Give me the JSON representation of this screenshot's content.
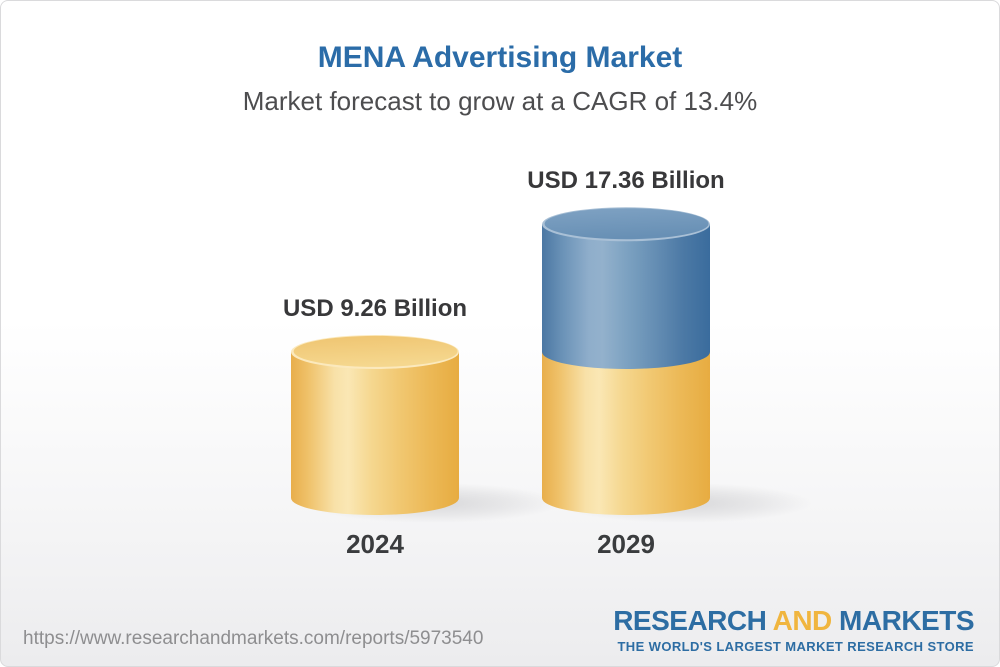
{
  "chart_data": {
    "type": "bar",
    "variant": "3d-cylinder-infographic",
    "title": "MENA Advertising Market",
    "subtitle": "Market forecast to grow at a CAGR of 13.4%",
    "cagr_percent": 13.4,
    "unit": "USD Billion",
    "categories": [
      "2024",
      "2029"
    ],
    "values": [
      9.26,
      17.36
    ],
    "legend_position": "none",
    "grid": false,
    "bars": [
      {
        "category": "2024",
        "value": 9.26,
        "value_label": "USD 9.26 Billion",
        "segments": [
          {
            "palette": "gold",
            "value": 9.26
          }
        ]
      },
      {
        "category": "2029",
        "value": 17.36,
        "value_label": "USD 17.36 Billion",
        "segments": [
          {
            "palette": "gold",
            "value": 9.26
          },
          {
            "palette": "blue",
            "value": 8.1
          }
        ]
      }
    ],
    "colors": {
      "gold": "#F2C878",
      "blue": "#5E8BB3",
      "title_text": "#2B6CA8",
      "subtitle_text": "#4D4D4F",
      "label_text": "#38383A"
    }
  },
  "footer": {
    "url": "https://www.researchandmarkets.com/reports/5973540",
    "logo": {
      "part1": "RESEARCH",
      "part2": "AND",
      "part3": "MARKETS",
      "tagline": "THE WORLD'S LARGEST MARKET RESEARCH STORE",
      "blue": "#2D6DA3",
      "gold": "#F0B53F"
    }
  }
}
